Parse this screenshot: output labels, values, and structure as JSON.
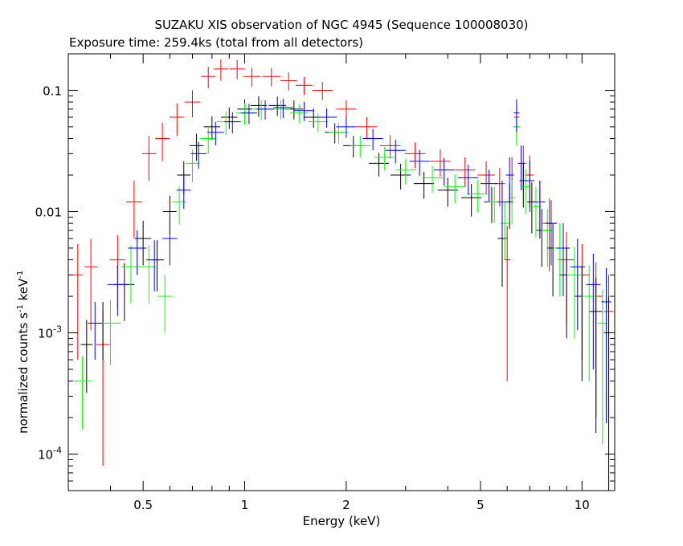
{
  "title": "SUZAKU XIS observation of NGC 4945 (Sequence 100008030)",
  "subtitle": "Exposure time: 259.4ks (total from all detectors)",
  "colors": {
    "xis0": "#000000",
    "xis1": "#ff0000",
    "xis2": "#00ff00",
    "xis3": "#0000ff"
  },
  "chart_data": {
    "type": "scatter",
    "title": "SUZAKU XIS observation of NGC 4945 (Sequence 100008030)",
    "subtitle": "Exposure time: 259.4ks (total from all detectors)",
    "xlabel": "Energy (keV)",
    "ylabel": "normalized counts s-1 keV-1",
    "ylabel_parts": [
      "normalized counts s",
      "-1",
      " keV",
      "-1"
    ],
    "xscale": "log",
    "yscale": "log",
    "xlim": [
      0.3,
      12.5
    ],
    "ylim": [
      5e-05,
      0.2
    ],
    "xticks": [
      0.5,
      1,
      2,
      5,
      10
    ],
    "xtick_labels": [
      "0.5",
      "1",
      "2",
      "5",
      "10"
    ],
    "yticks": [
      0.0001,
      0.001,
      0.01,
      0.1
    ],
    "ytick_labels": [
      {
        "base": "10",
        "exp": "-4"
      },
      {
        "base": "10",
        "exp": "-3"
      },
      {
        "base": "0.01",
        "exp": ""
      },
      {
        "base": "0.1",
        "exp": ""
      }
    ],
    "grid": false,
    "series": [
      {
        "color": "#ff0000",
        "x": [
          0.32,
          0.35,
          0.38,
          0.42,
          0.47,
          0.52,
          0.57,
          0.63,
          0.7,
          0.78,
          0.85,
          0.95,
          1.05,
          1.2,
          1.35,
          1.5,
          1.7,
          2.0,
          2.3,
          2.7,
          3.2,
          3.8,
          4.5,
          5.2,
          5.7,
          6.0,
          6.2,
          6.4,
          6.7,
          7.0,
          7.5,
          8.0,
          9.0,
          10.0,
          11.0,
          12.0
        ],
        "y": [
          0.003,
          0.0035,
          0.0008,
          0.004,
          0.012,
          0.03,
          0.04,
          0.06,
          0.08,
          0.13,
          0.15,
          0.15,
          0.13,
          0.13,
          0.12,
          0.11,
          0.1,
          0.07,
          0.05,
          0.035,
          0.03,
          0.026,
          0.022,
          0.02,
          0.017,
          0.004,
          0.02,
          0.06,
          0.025,
          0.02,
          0.012,
          0.008,
          0.004,
          0.003,
          0.002,
          0.0015
        ],
        "err": [
          0.8,
          0.7,
          0.9,
          0.6,
          0.5,
          0.4,
          0.35,
          0.3,
          0.25,
          0.2,
          0.2,
          0.18,
          0.18,
          0.17,
          0.17,
          0.17,
          0.17,
          0.18,
          0.2,
          0.22,
          0.24,
          0.25,
          0.27,
          0.3,
          0.35,
          0.9,
          0.4,
          0.3,
          0.4,
          0.45,
          0.5,
          0.6,
          0.7,
          0.8,
          0.9,
          1.0
        ]
      },
      {
        "color": "#000000",
        "x": [
          0.34,
          0.38,
          0.44,
          0.5,
          0.55,
          0.6,
          0.66,
          0.72,
          0.8,
          0.9,
          1.0,
          1.1,
          1.25,
          1.4,
          1.6,
          1.85,
          2.1,
          2.5,
          2.9,
          3.4,
          4.0,
          4.7,
          5.4,
          5.8,
          6.1,
          6.4,
          6.7,
          7.1,
          7.6,
          8.2,
          9.0,
          10.0,
          11.0,
          12.0
        ],
        "y": [
          0.0008,
          0.0012,
          0.0025,
          0.006,
          0.004,
          0.01,
          0.02,
          0.035,
          0.05,
          0.06,
          0.07,
          0.075,
          0.075,
          0.07,
          0.06,
          0.045,
          0.035,
          0.025,
          0.02,
          0.017,
          0.015,
          0.013,
          0.012,
          0.006,
          0.012,
          0.05,
          0.018,
          0.012,
          0.007,
          0.005,
          0.003,
          0.002,
          0.0015,
          0.001
        ],
        "err": [
          0.6,
          0.5,
          0.5,
          0.4,
          0.45,
          0.35,
          0.3,
          0.25,
          0.22,
          0.2,
          0.2,
          0.19,
          0.18,
          0.18,
          0.18,
          0.19,
          0.2,
          0.22,
          0.24,
          0.25,
          0.27,
          0.3,
          0.33,
          0.6,
          0.4,
          0.3,
          0.4,
          0.45,
          0.5,
          0.6,
          0.7,
          0.8,
          0.9,
          1.0
        ]
      },
      {
        "color": "#00ff00",
        "x": [
          0.33,
          0.4,
          0.46,
          0.52,
          0.58,
          0.64,
          0.7,
          0.78,
          0.88,
          1.0,
          1.12,
          1.28,
          1.45,
          1.65,
          1.9,
          2.2,
          2.6,
          3.0,
          3.6,
          4.2,
          4.9,
          5.5,
          5.9,
          6.2,
          6.4,
          6.8,
          7.3,
          7.9,
          8.6,
          9.5,
          10.5,
          11.5
        ],
        "y": [
          0.0004,
          0.0012,
          0.0035,
          0.0035,
          0.002,
          0.012,
          0.025,
          0.04,
          0.055,
          0.065,
          0.07,
          0.07,
          0.065,
          0.055,
          0.045,
          0.035,
          0.028,
          0.022,
          0.019,
          0.016,
          0.014,
          0.012,
          0.008,
          0.013,
          0.05,
          0.016,
          0.011,
          0.007,
          0.005,
          0.003,
          0.002,
          0.0012
        ],
        "err": [
          0.6,
          0.55,
          0.5,
          0.5,
          0.5,
          0.35,
          0.3,
          0.25,
          0.22,
          0.2,
          0.19,
          0.18,
          0.18,
          0.18,
          0.19,
          0.2,
          0.22,
          0.24,
          0.25,
          0.27,
          0.3,
          0.33,
          0.5,
          0.4,
          0.3,
          0.4,
          0.45,
          0.5,
          0.6,
          0.7,
          0.8,
          0.9
        ]
      },
      {
        "color": "#0000ff",
        "x": [
          0.36,
          0.42,
          0.48,
          0.54,
          0.6,
          0.66,
          0.73,
          0.82,
          0.92,
          1.03,
          1.15,
          1.3,
          1.5,
          1.75,
          2.0,
          2.4,
          2.8,
          3.3,
          3.9,
          4.6,
          5.3,
          5.8,
          6.1,
          6.4,
          6.6,
          7.0,
          7.5,
          8.1,
          8.8,
          9.7,
          10.8,
          11.8
        ],
        "y": [
          0.0012,
          0.0025,
          0.005,
          0.004,
          0.006,
          0.015,
          0.03,
          0.045,
          0.055,
          0.065,
          0.07,
          0.072,
          0.068,
          0.06,
          0.05,
          0.04,
          0.032,
          0.026,
          0.022,
          0.019,
          0.017,
          0.012,
          0.02,
          0.065,
          0.025,
          0.018,
          0.012,
          0.008,
          0.005,
          0.0035,
          0.0025,
          0.0018
        ],
        "err": [
          0.5,
          0.45,
          0.4,
          0.45,
          0.4,
          0.3,
          0.25,
          0.22,
          0.2,
          0.19,
          0.18,
          0.18,
          0.18,
          0.18,
          0.19,
          0.2,
          0.22,
          0.24,
          0.26,
          0.28,
          0.3,
          0.5,
          0.4,
          0.3,
          0.4,
          0.45,
          0.5,
          0.55,
          0.6,
          0.7,
          0.8,
          0.9
        ]
      }
    ]
  }
}
